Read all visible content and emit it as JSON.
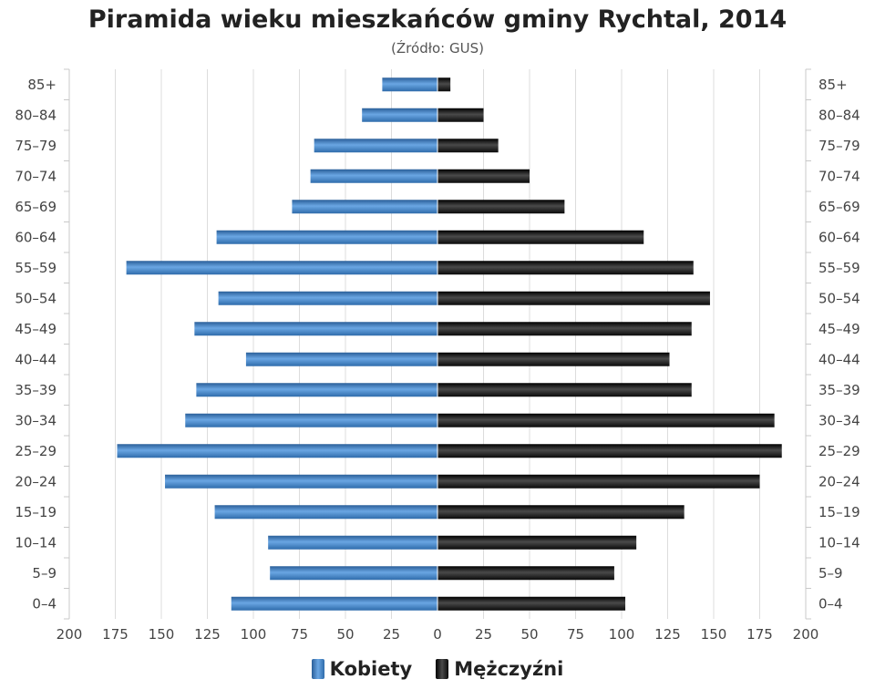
{
  "chart_data": {
    "type": "bar",
    "title": "Piramida wieku mieszkańców gminy Rychtal, 2014",
    "subtitle": "(Źródło: GUS)",
    "categories": [
      "85+",
      "80–84",
      "75–79",
      "70–74",
      "65–69",
      "60–64",
      "55–59",
      "50–54",
      "45–49",
      "40–44",
      "35–39",
      "30–34",
      "25–29",
      "20–24",
      "15–19",
      "10–14",
      "5–9",
      "0–4"
    ],
    "series": [
      {
        "name": "Kobiety",
        "color": "#3d7fc4",
        "values": [
          30,
          41,
          67,
          69,
          79,
          120,
          169,
          119,
          132,
          104,
          131,
          137,
          174,
          148,
          121,
          92,
          91,
          112
        ]
      },
      {
        "name": "Mężczyźni",
        "color": "#1a1a1a",
        "values": [
          7,
          25,
          33,
          50,
          69,
          112,
          139,
          148,
          138,
          126,
          138,
          183,
          187,
          175,
          134,
          108,
          96,
          102
        ]
      }
    ],
    "x_ticks": [
      "200",
      "175",
      "150",
      "125",
      "100",
      "75",
      "50",
      "25",
      "0",
      "25",
      "50",
      "75",
      "100",
      "125",
      "150",
      "175",
      "200"
    ],
    "xlim": [
      -200,
      200
    ],
    "grid": true,
    "legend_position": "bottom"
  }
}
